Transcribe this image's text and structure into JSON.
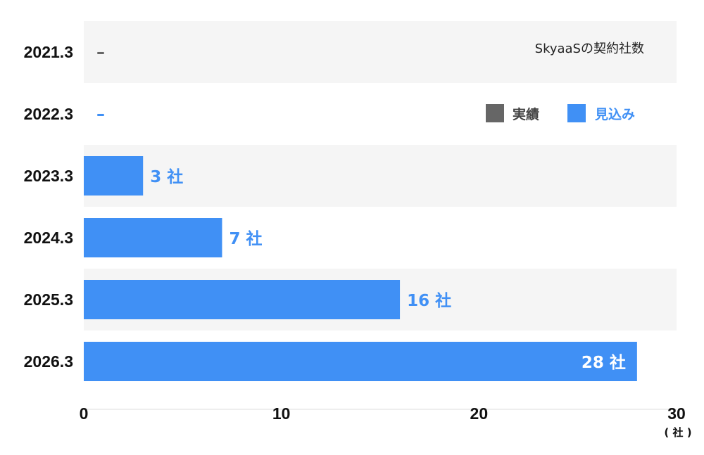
{
  "chart_data": {
    "type": "bar",
    "orientation": "horizontal",
    "title": "SkyaaSの契約社数",
    "categories": [
      "2021.3",
      "2022.3",
      "2023.3",
      "2024.3",
      "2025.3",
      "2026.3"
    ],
    "series": [
      {
        "name": "実績",
        "color": "#666666",
        "values": [
          null,
          null,
          null,
          null,
          null,
          null
        ]
      },
      {
        "name": "見込み",
        "color": "#4090f5",
        "values": [
          null,
          null,
          3,
          7,
          16,
          28
        ]
      }
    ],
    "data_labels": [
      "–",
      "–",
      "3 社",
      "7 社",
      "16 社",
      "28 社"
    ],
    "data_label_colors": [
      "#666666",
      "#4090f5",
      "#4090f5",
      "#4090f5",
      "#4090f5",
      "#ffffff"
    ],
    "xlim": [
      0,
      30
    ],
    "xticks": [
      "0",
      "10",
      "20",
      "30"
    ],
    "x_unit": "( 社 )",
    "legend_position": "top-right",
    "row_band_colors": [
      "#f5f5f5",
      "#ffffff"
    ]
  }
}
